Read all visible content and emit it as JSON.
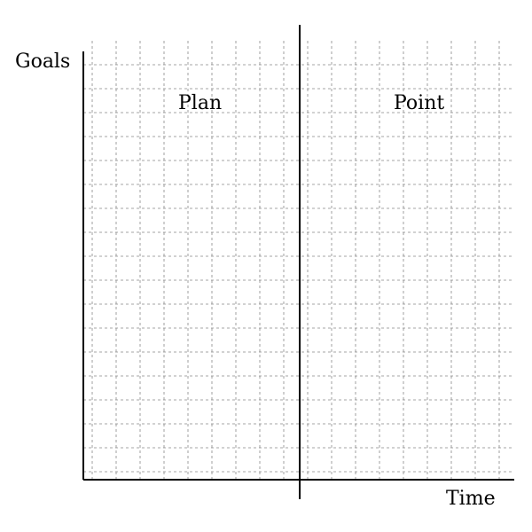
{
  "axes": {
    "y_label": "Goals",
    "x_label": "Time"
  },
  "regions": {
    "left_label": "Plan",
    "right_label": "Point"
  },
  "colors": {
    "axis": "#000000",
    "grid": "#888888",
    "background": "#ffffff"
  }
}
